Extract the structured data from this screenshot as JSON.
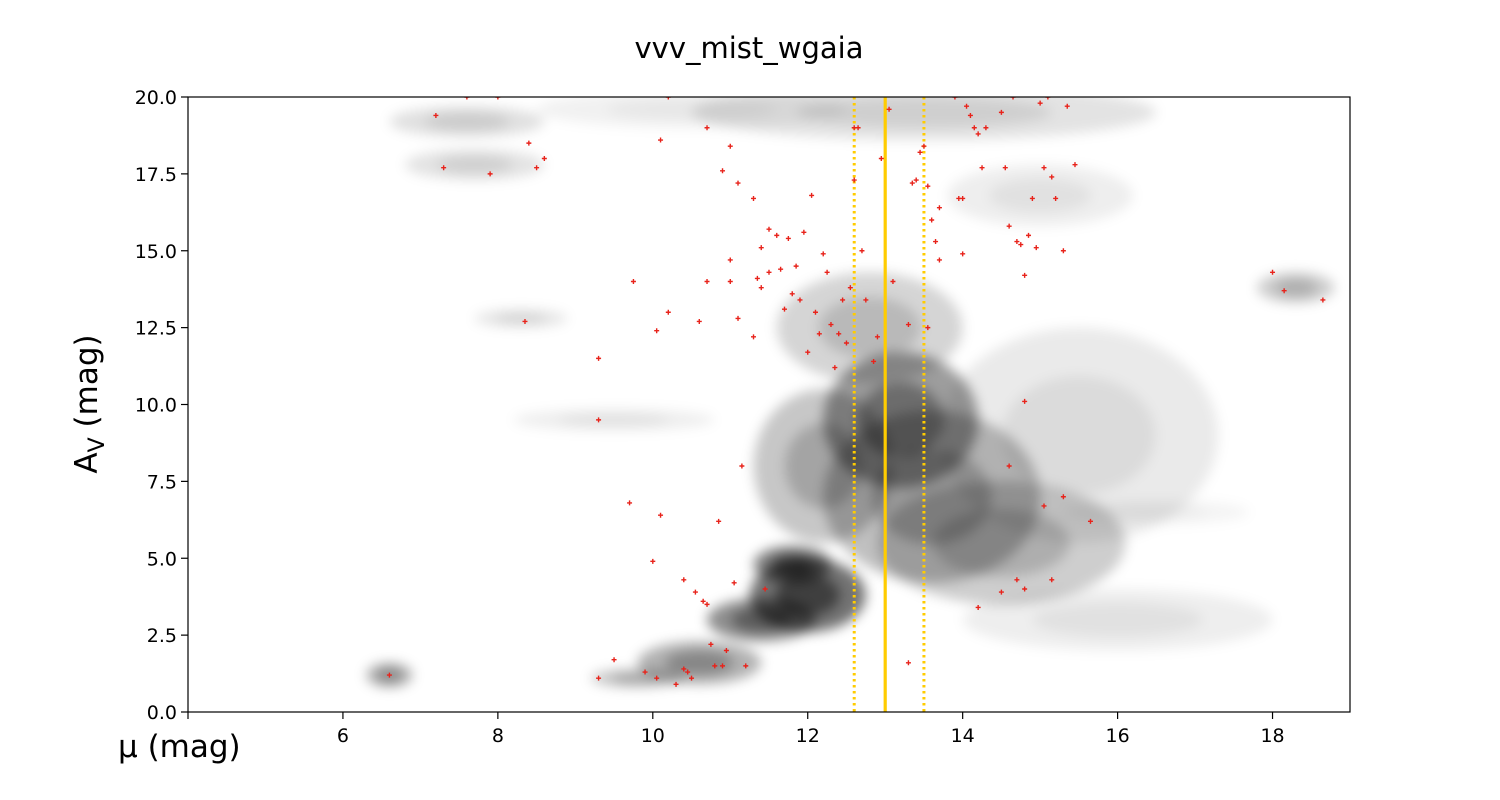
{
  "chart_data": {
    "type": "scatter",
    "title": "vvv_mist_wgaia",
    "xlabel": "μ (mag)",
    "ylabel": "A",
    "ylabel_sub": "V",
    "ylabel_unit": " (mag)",
    "xlim": [
      4,
      19
    ],
    "ylim": [
      0,
      20
    ],
    "xticks": [
      4,
      6,
      8,
      10,
      12,
      14,
      16,
      18
    ],
    "xtick_labels": [
      "",
      "6",
      "8",
      "10",
      "12",
      "14",
      "16",
      "18"
    ],
    "yticks": [
      0,
      2.5,
      5,
      7.5,
      10,
      12.5,
      15,
      17.5,
      20
    ],
    "ytick_labels": [
      "0.0",
      "2.5",
      "5.0",
      "7.5",
      "10.0",
      "12.5",
      "15.0",
      "17.5",
      "20.0"
    ],
    "grid": false,
    "background": "grayscale density map",
    "colors": {
      "points": "#e8231b",
      "vertical_lines": "#ffcc00",
      "density": "#000000"
    },
    "vertical_lines": [
      {
        "x": 13.0,
        "style": "solid"
      },
      {
        "x": 12.6,
        "style": "dotted"
      },
      {
        "x": 13.5,
        "style": "dotted"
      }
    ],
    "density_blobs": [
      {
        "x": 12.0,
        "y": 3.8,
        "sx": 0.75,
        "sy": 1.2,
        "w": 1.0
      },
      {
        "x": 11.8,
        "y": 4.8,
        "sx": 0.5,
        "sy": 0.6,
        "w": 0.9
      },
      {
        "x": 11.4,
        "y": 3.0,
        "sx": 0.7,
        "sy": 0.7,
        "w": 0.8
      },
      {
        "x": 10.6,
        "y": 1.6,
        "sx": 0.8,
        "sy": 0.7,
        "w": 0.55
      },
      {
        "x": 9.8,
        "y": 1.1,
        "sx": 0.6,
        "sy": 0.3,
        "w": 0.4
      },
      {
        "x": 13.2,
        "y": 9.5,
        "sx": 1.0,
        "sy": 2.2,
        "w": 0.7
      },
      {
        "x": 13.6,
        "y": 7.0,
        "sx": 1.4,
        "sy": 2.8,
        "w": 0.45
      },
      {
        "x": 12.2,
        "y": 8.0,
        "sx": 0.9,
        "sy": 2.5,
        "w": 0.4
      },
      {
        "x": 14.5,
        "y": 5.5,
        "sx": 1.6,
        "sy": 2.0,
        "w": 0.35
      },
      {
        "x": 12.8,
        "y": 12.5,
        "sx": 1.2,
        "sy": 1.8,
        "w": 0.3
      },
      {
        "x": 15.5,
        "y": 9.0,
        "sx": 1.8,
        "sy": 3.5,
        "w": 0.15
      },
      {
        "x": 16.0,
        "y": 3.0,
        "sx": 2.0,
        "sy": 1.0,
        "w": 0.12
      },
      {
        "x": 6.6,
        "y": 1.2,
        "sx": 0.3,
        "sy": 0.4,
        "w": 0.55
      },
      {
        "x": 7.7,
        "y": 17.8,
        "sx": 0.9,
        "sy": 0.5,
        "w": 0.2
      },
      {
        "x": 7.6,
        "y": 19.2,
        "sx": 1.0,
        "sy": 0.5,
        "w": 0.22
      },
      {
        "x": 8.3,
        "y": 12.8,
        "sx": 0.6,
        "sy": 0.3,
        "w": 0.18
      },
      {
        "x": 9.5,
        "y": 9.5,
        "sx": 1.3,
        "sy": 0.35,
        "w": 0.12
      },
      {
        "x": 18.3,
        "y": 13.8,
        "sx": 0.5,
        "sy": 0.5,
        "w": 0.35
      },
      {
        "x": 13.5,
        "y": 19.5,
        "sx": 3.0,
        "sy": 0.9,
        "w": 0.2
      },
      {
        "x": 10.5,
        "y": 19.6,
        "sx": 2.0,
        "sy": 0.6,
        "w": 0.1
      },
      {
        "x": 15.0,
        "y": 16.8,
        "sx": 1.2,
        "sy": 1.0,
        "w": 0.12
      },
      {
        "x": 16.5,
        "y": 6.5,
        "sx": 1.2,
        "sy": 0.4,
        "w": 0.08
      }
    ],
    "points": [
      [
        6.6,
        1.2
      ],
      [
        7.2,
        19.4
      ],
      [
        7.6,
        20.0
      ],
      [
        8.0,
        20.0
      ],
      [
        7.3,
        17.7
      ],
      [
        7.9,
        17.5
      ],
      [
        8.4,
        18.5
      ],
      [
        8.5,
        17.7
      ],
      [
        8.6,
        18.0
      ],
      [
        8.35,
        12.7
      ],
      [
        9.3,
        11.5
      ],
      [
        9.3,
        9.5
      ],
      [
        9.3,
        1.1
      ],
      [
        9.5,
        1.7
      ],
      [
        9.7,
        6.8
      ],
      [
        9.75,
        14.0
      ],
      [
        9.9,
        1.3
      ],
      [
        10.0,
        4.9
      ],
      [
        10.05,
        1.1
      ],
      [
        10.1,
        6.4
      ],
      [
        10.05,
        12.4
      ],
      [
        10.1,
        18.6
      ],
      [
        10.2,
        20.0
      ],
      [
        10.2,
        13.0
      ],
      [
        10.3,
        0.9
      ],
      [
        10.4,
        4.3
      ],
      [
        10.4,
        1.4
      ],
      [
        10.45,
        1.3
      ],
      [
        10.5,
        1.1
      ],
      [
        10.55,
        3.9
      ],
      [
        10.6,
        12.7
      ],
      [
        10.65,
        3.6
      ],
      [
        10.7,
        3.5
      ],
      [
        10.7,
        14.0
      ],
      [
        10.7,
        19.0
      ],
      [
        10.75,
        2.2
      ],
      [
        10.8,
        1.5
      ],
      [
        10.85,
        6.2
      ],
      [
        10.9,
        1.5
      ],
      [
        10.9,
        17.6
      ],
      [
        10.95,
        2.0
      ],
      [
        11.0,
        14.7
      ],
      [
        11.0,
        14.0
      ],
      [
        11.0,
        18.4
      ],
      [
        11.05,
        4.2
      ],
      [
        11.1,
        17.2
      ],
      [
        11.1,
        12.8
      ],
      [
        11.15,
        8.0
      ],
      [
        11.2,
        1.5
      ],
      [
        11.3,
        16.7
      ],
      [
        11.3,
        12.2
      ],
      [
        11.35,
        14.1
      ],
      [
        11.4,
        15.1
      ],
      [
        11.4,
        13.8
      ],
      [
        11.45,
        4.0
      ],
      [
        11.5,
        15.7
      ],
      [
        11.5,
        14.3
      ],
      [
        11.6,
        15.5
      ],
      [
        11.65,
        14.4
      ],
      [
        11.7,
        13.1
      ],
      [
        11.75,
        15.4
      ],
      [
        11.8,
        13.6
      ],
      [
        11.85,
        14.5
      ],
      [
        11.9,
        13.4
      ],
      [
        11.95,
        15.6
      ],
      [
        12.0,
        11.7
      ],
      [
        12.05,
        16.8
      ],
      [
        12.1,
        13.0
      ],
      [
        12.15,
        12.3
      ],
      [
        12.2,
        14.9
      ],
      [
        12.25,
        14.3
      ],
      [
        12.3,
        12.6
      ],
      [
        12.35,
        11.2
      ],
      [
        12.4,
        12.3
      ],
      [
        12.45,
        13.4
      ],
      [
        12.5,
        12.0
      ],
      [
        12.55,
        13.8
      ],
      [
        12.6,
        17.3
      ],
      [
        12.7,
        15.0
      ],
      [
        12.65,
        19.0
      ],
      [
        12.75,
        13.4
      ],
      [
        12.85,
        11.4
      ],
      [
        12.9,
        12.2
      ],
      [
        12.95,
        18.0
      ],
      [
        13.1,
        14.0
      ],
      [
        13.3,
        12.6
      ],
      [
        13.35,
        17.2
      ],
      [
        13.4,
        17.3
      ],
      [
        13.45,
        18.2
      ],
      [
        13.5,
        18.4
      ],
      [
        13.55,
        17.1
      ],
      [
        13.55,
        12.5
      ],
      [
        13.6,
        16.0
      ],
      [
        13.65,
        15.3
      ],
      [
        13.7,
        14.7
      ],
      [
        13.7,
        16.4
      ],
      [
        13.9,
        20.0
      ],
      [
        13.95,
        16.7
      ],
      [
        14.0,
        14.9
      ],
      [
        14.0,
        16.7
      ],
      [
        14.05,
        19.7
      ],
      [
        14.1,
        19.4
      ],
      [
        14.15,
        19.0
      ],
      [
        14.2,
        18.8
      ],
      [
        14.25,
        17.7
      ],
      [
        14.3,
        19.0
      ],
      [
        14.5,
        19.5
      ],
      [
        14.55,
        17.7
      ],
      [
        14.6,
        15.8
      ],
      [
        14.65,
        20.0
      ],
      [
        14.7,
        15.3
      ],
      [
        14.75,
        15.2
      ],
      [
        14.8,
        14.2
      ],
      [
        14.85,
        15.5
      ],
      [
        14.9,
        16.7
      ],
      [
        14.95,
        15.1
      ],
      [
        15.0,
        19.8
      ],
      [
        15.05,
        17.7
      ],
      [
        15.1,
        20.0
      ],
      [
        15.15,
        17.4
      ],
      [
        15.2,
        16.7
      ],
      [
        15.3,
        15.0
      ],
      [
        15.35,
        19.7
      ],
      [
        15.45,
        17.8
      ],
      [
        14.8,
        10.1
      ],
      [
        14.6,
        8.0
      ],
      [
        14.7,
        4.3
      ],
      [
        14.8,
        4.0
      ],
      [
        15.15,
        4.3
      ],
      [
        15.05,
        6.7
      ],
      [
        15.3,
        7.0
      ],
      [
        15.65,
        6.2
      ],
      [
        14.2,
        3.4
      ],
      [
        14.5,
        3.9
      ],
      [
        13.3,
        1.6
      ],
      [
        18.0,
        14.3
      ],
      [
        18.15,
        13.7
      ],
      [
        18.65,
        13.4
      ],
      [
        12.6,
        19.0
      ],
      [
        13.05,
        19.6
      ]
    ]
  }
}
